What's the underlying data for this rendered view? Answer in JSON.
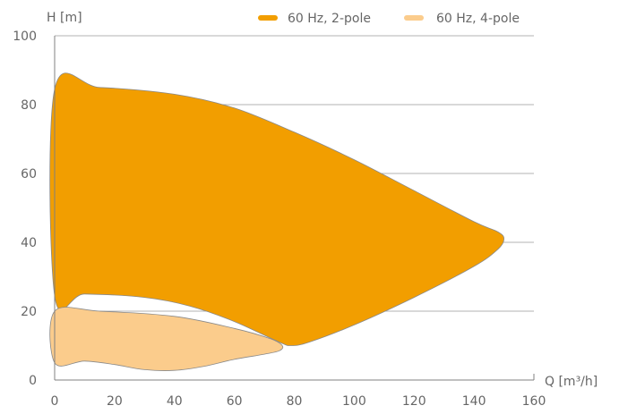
{
  "chart_data": {
    "type": "area",
    "title": "",
    "xlabel": "Q [m³/h]",
    "ylabel": "H [m]",
    "xlim": [
      0,
      160
    ],
    "ylim": [
      0,
      100
    ],
    "x_ticks": [
      "0",
      "20",
      "40",
      "60",
      "80",
      "100",
      "120",
      "140",
      "160"
    ],
    "y_ticks": [
      "0",
      "20",
      "40",
      "60",
      "80",
      "100"
    ],
    "grid": "horizontal",
    "legend_position": "top",
    "series": [
      {
        "name": "60 Hz, 2-pole",
        "color": "#f29e00",
        "points": [
          [
            0,
            84.5
          ],
          [
            15,
            85
          ],
          [
            40,
            83
          ],
          [
            60,
            79
          ],
          [
            80,
            72
          ],
          [
            100,
            64
          ],
          [
            120,
            55
          ],
          [
            140,
            46
          ],
          [
            148,
            43
          ],
          [
            150,
            41
          ],
          [
            148,
            38
          ],
          [
            140,
            33
          ],
          [
            120,
            24
          ],
          [
            100,
            16
          ],
          [
            85,
            11
          ],
          [
            79,
            10
          ],
          [
            75,
            11
          ],
          [
            60,
            17
          ],
          [
            45,
            21.5
          ],
          [
            30,
            24
          ],
          [
            10,
            25
          ],
          [
            0,
            24.5
          ]
        ]
      },
      {
        "name": "60 Hz, 4-pole",
        "color": "#fbcc8c",
        "points": [
          [
            0,
            20
          ],
          [
            15,
            20
          ],
          [
            40,
            18.5
          ],
          [
            60,
            15
          ],
          [
            72,
            12
          ],
          [
            76,
            10
          ],
          [
            75,
            8.5
          ],
          [
            70,
            7.5
          ],
          [
            60,
            6
          ],
          [
            50,
            4
          ],
          [
            40,
            2.8
          ],
          [
            30,
            3
          ],
          [
            20,
            4.5
          ],
          [
            10,
            5.5
          ],
          [
            0,
            5
          ]
        ]
      }
    ]
  }
}
